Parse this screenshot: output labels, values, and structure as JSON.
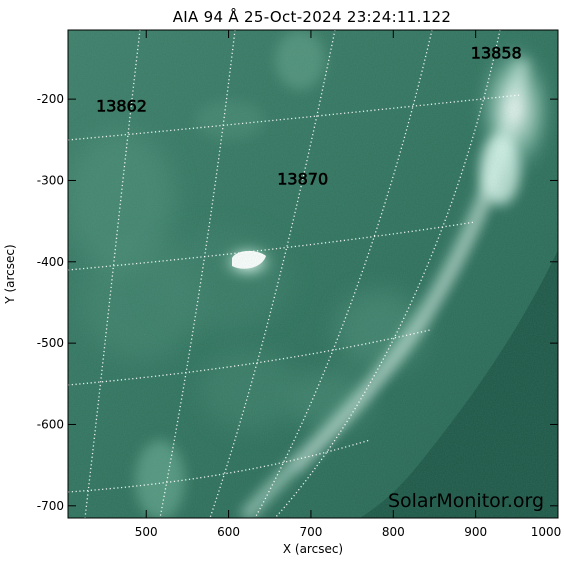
{
  "figure": {
    "title": "AIA 94 Å 25-Oct-2024 23:24:11.122",
    "x_axis_label": "X (arcsec)",
    "y_axis_label": "Y (arcsec)",
    "x_ticks": [
      "500",
      "600",
      "700",
      "800",
      "900",
      "1000"
    ],
    "y_ticks": [
      "-200",
      "-300",
      "-400",
      "-500",
      "-600",
      "-700"
    ],
    "x_range": [
      405,
      1000
    ],
    "y_range": [
      -715,
      -115
    ],
    "image_colormap_base": "#2e6e5a",
    "watermark": "SolarMonitor.org",
    "active_regions": [
      {
        "label": "13862",
        "x": 470,
        "y": -215
      },
      {
        "label": "13870",
        "x": 690,
        "y": -305
      },
      {
        "label": "13858",
        "x": 925,
        "y": -150
      }
    ]
  }
}
